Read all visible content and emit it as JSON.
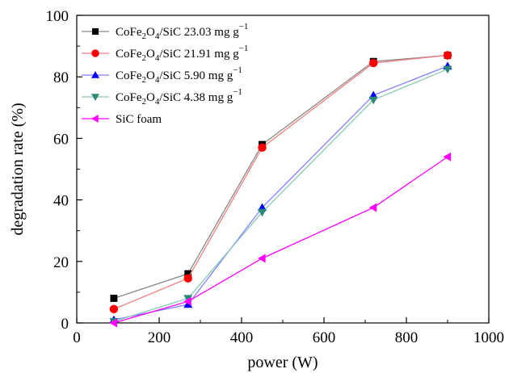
{
  "chart_data": {
    "type": "line",
    "xlabel": "power (W)",
    "ylabel": "degradation rate (%)",
    "xlim": [
      0,
      1000
    ],
    "ylim": [
      0,
      100
    ],
    "x_ticks": [
      0,
      200,
      400,
      600,
      800,
      1000
    ],
    "y_ticks": [
      0,
      20,
      40,
      60,
      80,
      100
    ],
    "grid": false,
    "legend_position": "top-left",
    "x": [
      90,
      270,
      450,
      720,
      900
    ],
    "series": [
      {
        "key": "s1",
        "name_parts": [
          {
            "text": "CoFe",
            "sub": false
          },
          {
            "text": "2",
            "sub": true
          },
          {
            "text": "O",
            "sub": false
          },
          {
            "text": "4",
            "sub": true
          },
          {
            "text": "/SiC 23.03 mg g",
            "sub": false
          },
          {
            "text": "−1",
            "sup": true
          }
        ],
        "values": [
          8.0,
          16.0,
          58.0,
          85.0,
          87.0
        ],
        "color": "#000000",
        "line_color": "#888888",
        "marker": "square"
      },
      {
        "key": "s2",
        "name_parts": [
          {
            "text": "CoFe",
            "sub": false
          },
          {
            "text": "2",
            "sub": true
          },
          {
            "text": "O",
            "sub": false
          },
          {
            "text": "4",
            "sub": true
          },
          {
            "text": "/SiC 21.91 mg g",
            "sub": false
          },
          {
            "text": "−1",
            "sup": true
          }
        ],
        "values": [
          4.5,
          14.5,
          57.0,
          84.5,
          87.0
        ],
        "color": "#ff0000",
        "line_color": "#f08080",
        "marker": "circle"
      },
      {
        "key": "s3",
        "name_parts": [
          {
            "text": "CoFe",
            "sub": false
          },
          {
            "text": "2",
            "sub": true
          },
          {
            "text": "O",
            "sub": false
          },
          {
            "text": "4",
            "sub": true
          },
          {
            "text": "/SiC 5.90 mg g",
            "sub": false
          },
          {
            "text": "−1",
            "sup": true
          }
        ],
        "values": [
          1.0,
          6.0,
          37.5,
          74.0,
          83.5
        ],
        "color": "#0000ff",
        "line_color": "#8080ff",
        "marker": "triangle-up"
      },
      {
        "key": "s4",
        "name_parts": [
          {
            "text": "CoFe",
            "sub": false
          },
          {
            "text": "2",
            "sub": true
          },
          {
            "text": "O",
            "sub": false
          },
          {
            "text": "4",
            "sub": true
          },
          {
            "text": "/SiC 4.38 mg g",
            "sub": false
          },
          {
            "text": "−1",
            "sup": true
          }
        ],
        "values": [
          0.5,
          8.0,
          36.0,
          72.5,
          82.5
        ],
        "color": "#2a8a7a",
        "line_color": "#88c8b8",
        "marker": "triangle-down"
      },
      {
        "key": "s5",
        "name_parts": [
          {
            "text": "SiC foam",
            "sub": false
          }
        ],
        "values": [
          0.0,
          7.0,
          21.0,
          37.5,
          54.0
        ],
        "color": "#ff00ff",
        "line_color": "#ff00ff",
        "marker": "triangle-left"
      }
    ]
  }
}
